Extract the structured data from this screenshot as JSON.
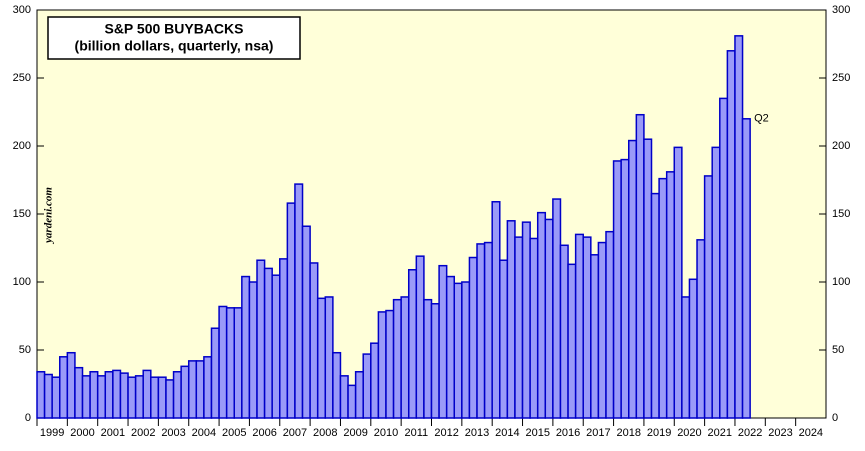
{
  "chart_data": {
    "type": "bar",
    "title": "S&P 500 BUYBACKS",
    "subtitle": "(billion dollars, quarterly, nsa)",
    "watermark": "yardeni.com",
    "annotation": "Q2",
    "categories": [
      null,
      null,
      null,
      null,
      null,
      null,
      null,
      null,
      null,
      null,
      null,
      null,
      null,
      null,
      null,
      null,
      null,
      null,
      null,
      null,
      null,
      null,
      null,
      null,
      null,
      null,
      null,
      null,
      null,
      null,
      null,
      null,
      null,
      null,
      null,
      null,
      null,
      null,
      null,
      null,
      null,
      null,
      null,
      null,
      null,
      null,
      null,
      null,
      null,
      null,
      null,
      null,
      null,
      null,
      null,
      null,
      null,
      null,
      null,
      null,
      null,
      null,
      null,
      null,
      null,
      null,
      null,
      null,
      null,
      null,
      null,
      null,
      null,
      null,
      null,
      null,
      null,
      null,
      null,
      null,
      null,
      null,
      null,
      null,
      null,
      null,
      null,
      null,
      null,
      null,
      null,
      null,
      null,
      null
    ],
    "values": [
      34,
      32,
      30,
      45,
      48,
      37,
      31,
      34,
      31,
      34,
      35,
      33,
      30,
      31,
      35,
      30,
      30,
      28,
      34,
      38,
      42,
      42,
      45,
      66,
      82,
      81,
      81,
      104,
      100,
      116,
      110,
      105,
      117,
      158,
      172,
      141,
      114,
      88,
      89,
      48,
      31,
      24,
      34,
      47,
      55,
      78,
      79,
      87,
      89,
      109,
      119,
      87,
      84,
      112,
      104,
      99,
      100,
      118,
      128,
      129,
      159,
      116,
      145,
      133,
      144,
      132,
      151,
      146,
      161,
      127,
      113,
      135,
      133,
      120,
      129,
      137,
      189,
      190,
      204,
      223,
      205,
      165,
      176,
      181,
      199,
      89,
      102,
      131,
      178,
      199,
      235,
      270,
      281,
      220
    ],
    "color": "#9a9af8",
    "edge_color": "#0000c8",
    "background": "#ffffd9",
    "xlim": [
      1999,
      2025
    ],
    "xticks": [
      1999,
      2000,
      2001,
      2002,
      2003,
      2004,
      2005,
      2006,
      2007,
      2008,
      2009,
      2010,
      2011,
      2012,
      2013,
      2014,
      2015,
      2016,
      2017,
      2018,
      2019,
      2020,
      2021,
      2022,
      2023,
      2024
    ],
    "ylim": [
      0,
      300
    ],
    "yticks": [
      0,
      50,
      100,
      150,
      200,
      250,
      300
    ]
  }
}
